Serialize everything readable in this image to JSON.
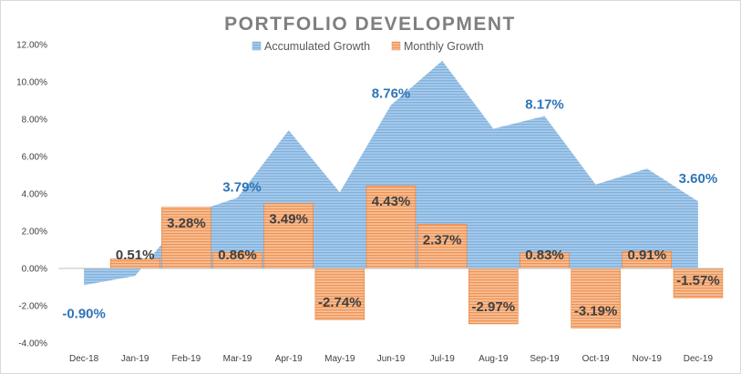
{
  "chart_data": {
    "type": "bar",
    "title": "PORTFOLIO DEVELOPMENT",
    "xlabel": "",
    "ylabel": "",
    "ylim": [
      -4,
      12
    ],
    "yticks": [
      -4,
      -2,
      0,
      2,
      4,
      6,
      8,
      10,
      12
    ],
    "ytick_labels": [
      "-4.00%",
      "-2.00%",
      "0.00%",
      "2.00%",
      "4.00%",
      "6.00%",
      "8.00%",
      "10.00%",
      "12.00%"
    ],
    "legend_position": "top-center",
    "grid": false,
    "categories": [
      "Dec-18",
      "Jan-19",
      "Feb-19",
      "Mar-19",
      "Apr-19",
      "May-19",
      "Jun-19",
      "Jul-19",
      "Aug-19",
      "Sep-19",
      "Oct-19",
      "Nov-19",
      "Dec-19"
    ],
    "series": [
      {
        "name": "Accumulated Growth",
        "type": "area",
        "color": "#9dc3e6",
        "label_color": "#2e75b6",
        "values": [
          -0.9,
          -0.4,
          2.88,
          3.79,
          7.41,
          4.08,
          8.76,
          11.13,
          7.49,
          8.17,
          4.5,
          5.35,
          3.6
        ],
        "labels": [
          "-0.90%",
          "",
          "",
          "3.79%",
          "",
          "",
          "8.76%",
          "",
          "",
          "8.17%",
          "",
          "",
          "3.60%"
        ]
      },
      {
        "name": "Monthly Growth",
        "type": "bar",
        "color": "#f4b183",
        "label_color": "#404040",
        "values": [
          0.0,
          0.51,
          3.28,
          0.86,
          3.49,
          -2.74,
          4.43,
          2.37,
          -2.97,
          0.83,
          -3.19,
          0.91,
          -1.57
        ],
        "labels": [
          "",
          "0.51%",
          "3.28%",
          "0.86%",
          "3.49%",
          "-2.74%",
          "4.43%",
          "2.37%",
          "-2.97%",
          "0.83%",
          "-3.19%",
          "0.91%",
          "-1.57%"
        ]
      }
    ]
  }
}
